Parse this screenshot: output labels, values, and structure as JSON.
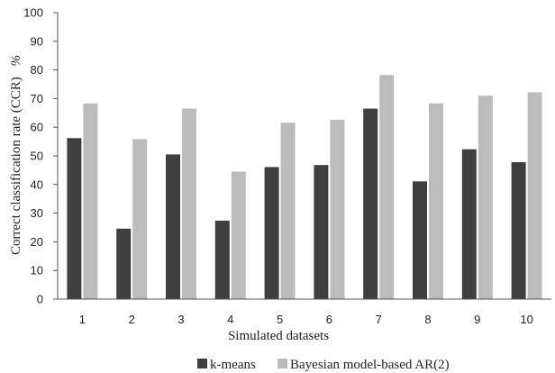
{
  "chart_data": {
    "type": "bar",
    "categories": [
      "1",
      "2",
      "3",
      "4",
      "5",
      "6",
      "7",
      "8",
      "9",
      "10"
    ],
    "series": [
      {
        "name": "k-means",
        "color": "#3f3f3f",
        "values": [
          56.2,
          24.6,
          50.5,
          27.4,
          46.1,
          46.8,
          66.5,
          41.1,
          52.3,
          47.8
        ]
      },
      {
        "name": "Bayesian model-based AR(2)",
        "color": "#bcbcbc",
        "values": [
          68.3,
          55.8,
          66.5,
          44.5,
          61.6,
          62.6,
          78.2,
          68.3,
          71.0,
          72.2
        ]
      }
    ],
    "xlabel": "Simulated datasets",
    "ylabel": "Correct classification rate (CCR)",
    "ylabel_unit": "%",
    "ylim": [
      0,
      100
    ],
    "yticks": [
      "0",
      "10",
      "20",
      "30",
      "40",
      "50",
      "60",
      "70",
      "80",
      "90",
      "100"
    ],
    "grid": false,
    "legend_position": "bottom"
  }
}
